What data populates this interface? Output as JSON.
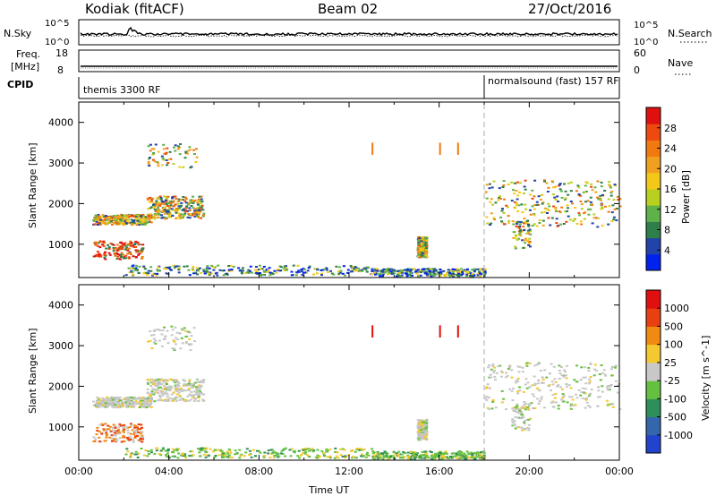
{
  "header": {
    "radar": "Kodiak (fitACF)",
    "beam": "Beam 02",
    "date": "27/Oct/2016"
  },
  "top_panels": {
    "nsky_label": "N.Sky",
    "nsky_ticks": [
      "10^5",
      "10^0"
    ],
    "nsearch_label": "N.Search",
    "nsearch_ticks": [
      "10^5",
      "10^0"
    ],
    "freq_label_1": "Freq.",
    "freq_label_2": "[MHz]",
    "freq_ticks": [
      "18",
      "8"
    ],
    "nave_label": "Nave",
    "nave_ticks": [
      "60",
      "0"
    ],
    "cpid_label": "CPID",
    "cpid_segments": [
      {
        "name": "themis 3300 RF",
        "start_hour": 0
      },
      {
        "name": "normalsound (fast) 157 RF",
        "start_hour": 18
      }
    ]
  },
  "chart_data": [
    {
      "type": "heatmap",
      "name": "power-panel",
      "x_hours": [
        0,
        24
      ],
      "ylim": [
        180,
        4500
      ],
      "ylabel": "Slant Range [km]",
      "y_ticks": [
        1000,
        2000,
        3000,
        4000
      ],
      "xlabel": "",
      "colorbar": {
        "label": "Power [dB]",
        "ticks": [
          "4",
          "8",
          "12",
          "16",
          "20",
          "24",
          "28"
        ],
        "colors": [
          "#0022ee",
          "#2244aa",
          "#2f7f4a",
          "#5fb14a",
          "#b8d020",
          "#f4c818",
          "#f0a020",
          "#f07a10",
          "#ee4a10",
          "#e01010"
        ]
      }
    },
    {
      "type": "heatmap",
      "name": "velocity-panel",
      "x_hours": [
        0,
        24
      ],
      "ylim": [
        180,
        4500
      ],
      "ylabel": "Slant Range [km]",
      "y_ticks": [
        1000,
        2000,
        3000,
        4000
      ],
      "xlabel": "Time UT",
      "x_ticks": [
        "00:00",
        "04:00",
        "08:00",
        "12:00",
        "16:00",
        "20:00",
        "00:00"
      ],
      "colorbar": {
        "label": "Velocity [m s^-1]",
        "ticks": [
          "1000",
          "500",
          "100",
          "25",
          "-25",
          "-100",
          "-500",
          "-1000"
        ],
        "colors": [
          "#2244cc",
          "#3366aa",
          "#2f8f5a",
          "#66c040",
          "#c8c8c8",
          "#f4c830",
          "#f08a10",
          "#e84010",
          "#e01010"
        ]
      }
    }
  ],
  "scatter_bands": [
    {
      "t0": 0.6,
      "t1": 3.2,
      "r0": 1500,
      "r1": 1750,
      "kind": "main"
    },
    {
      "t0": 3.0,
      "t1": 5.5,
      "r0": 1650,
      "r1": 2200,
      "kind": "main"
    },
    {
      "t0": 0.6,
      "t1": 2.8,
      "r0": 650,
      "r1": 1100,
      "kind": "hot"
    },
    {
      "t0": 3.0,
      "t1": 5.2,
      "r0": 2900,
      "r1": 3500,
      "kind": "sparse"
    },
    {
      "t0": 2.0,
      "t1": 13.0,
      "r0": 250,
      "r1": 500,
      "kind": "ground"
    },
    {
      "t0": 13.0,
      "t1": 18.0,
      "r0": 230,
      "r1": 420,
      "kind": "ground"
    },
    {
      "t0": 15.0,
      "t1": 15.4,
      "r0": 700,
      "r1": 1200,
      "kind": "main"
    },
    {
      "t0": 18.0,
      "t1": 24.0,
      "r0": 1450,
      "r1": 2600,
      "kind": "main"
    },
    {
      "t0": 19.2,
      "t1": 20.0,
      "r0": 900,
      "r1": 1600,
      "kind": "sparse"
    }
  ],
  "vertical_bursts": [
    {
      "t": 13.0,
      "r0": 3200,
      "r1": 3500
    },
    {
      "t": 16.0,
      "r0": 3200,
      "r1": 3500
    },
    {
      "t": 16.8,
      "r0": 3200,
      "r1": 3500
    }
  ]
}
